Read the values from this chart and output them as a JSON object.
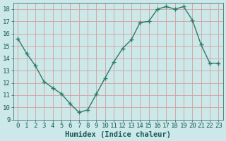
{
  "x": [
    0,
    1,
    2,
    3,
    4,
    5,
    6,
    7,
    8,
    9,
    10,
    11,
    12,
    13,
    14,
    15,
    16,
    17,
    18,
    19,
    20,
    21,
    22,
    23
  ],
  "y": [
    15.6,
    14.4,
    13.4,
    12.1,
    11.6,
    11.1,
    10.3,
    9.6,
    9.8,
    11.1,
    12.4,
    13.7,
    14.8,
    15.5,
    16.9,
    17.0,
    18.0,
    18.2,
    18.0,
    18.2,
    17.1,
    15.1,
    13.6,
    13.6
  ],
  "line_color": "#2d7a6a",
  "marker": "+",
  "marker_size": 4,
  "xlabel": "Humidex (Indice chaleur)",
  "xlim": [
    -0.5,
    23.5
  ],
  "ylim": [
    9,
    18.5
  ],
  "yticks": [
    9,
    10,
    11,
    12,
    13,
    14,
    15,
    16,
    17,
    18
  ],
  "xticks": [
    0,
    1,
    2,
    3,
    4,
    5,
    6,
    7,
    8,
    9,
    10,
    11,
    12,
    13,
    14,
    15,
    16,
    17,
    18,
    19,
    20,
    21,
    22,
    23
  ],
  "grid_color": "#d4a0a0",
  "bg_color": "#cce8e8",
  "tick_fontsize": 6.5,
  "xlabel_fontsize": 7.5,
  "linewidth": 1.0
}
